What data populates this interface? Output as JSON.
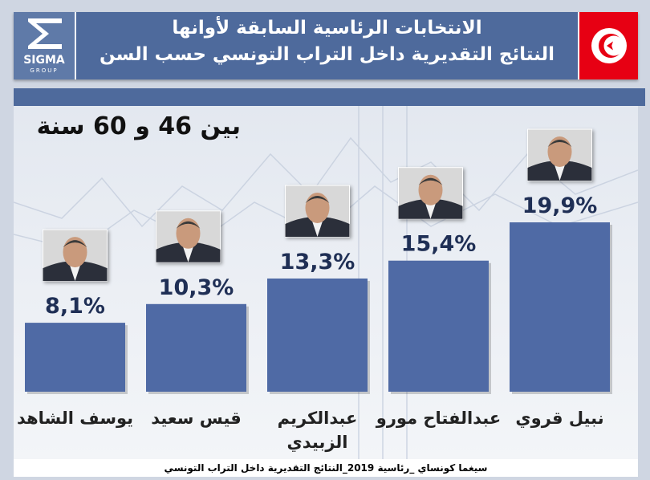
{
  "header": {
    "logo": {
      "name": "SIGMA",
      "sub": "GROUP"
    },
    "title_line1": "الانتخابات الرئاسية السابقة لأوانها",
    "title_line2": "النتائج التقديرية داخل التراب التونسي حسب السن",
    "flag_colors": {
      "field": "#e70013",
      "disc": "#ffffff"
    }
  },
  "age_label": "بين 46 و 60 سنة",
  "footer": "سيغما كونساي _رئاسية 2019_النتائج التقديرية داخل التراب التونسي",
  "colors": {
    "bar": "#4f6aa5",
    "header": "#4e6a9c",
    "text": "#1f2f55"
  },
  "chart_data": {
    "type": "bar",
    "title": "",
    "xlabel": "",
    "ylabel": "",
    "ylim": [
      0,
      20
    ],
    "grid": false,
    "value_format": "comma-decimal-percent",
    "categories": [
      "يوسف الشاهد",
      "قيس سعيد",
      "عبدالكريم الزبيدي",
      "عبدالفتاح مورو",
      "نبيل قروي"
    ],
    "values": [
      8.1,
      10.3,
      13.3,
      15.4,
      19.9
    ],
    "data_labels": [
      "8,1%",
      "10,3%",
      "13,3%",
      "15,4%",
      "19,9%"
    ]
  }
}
